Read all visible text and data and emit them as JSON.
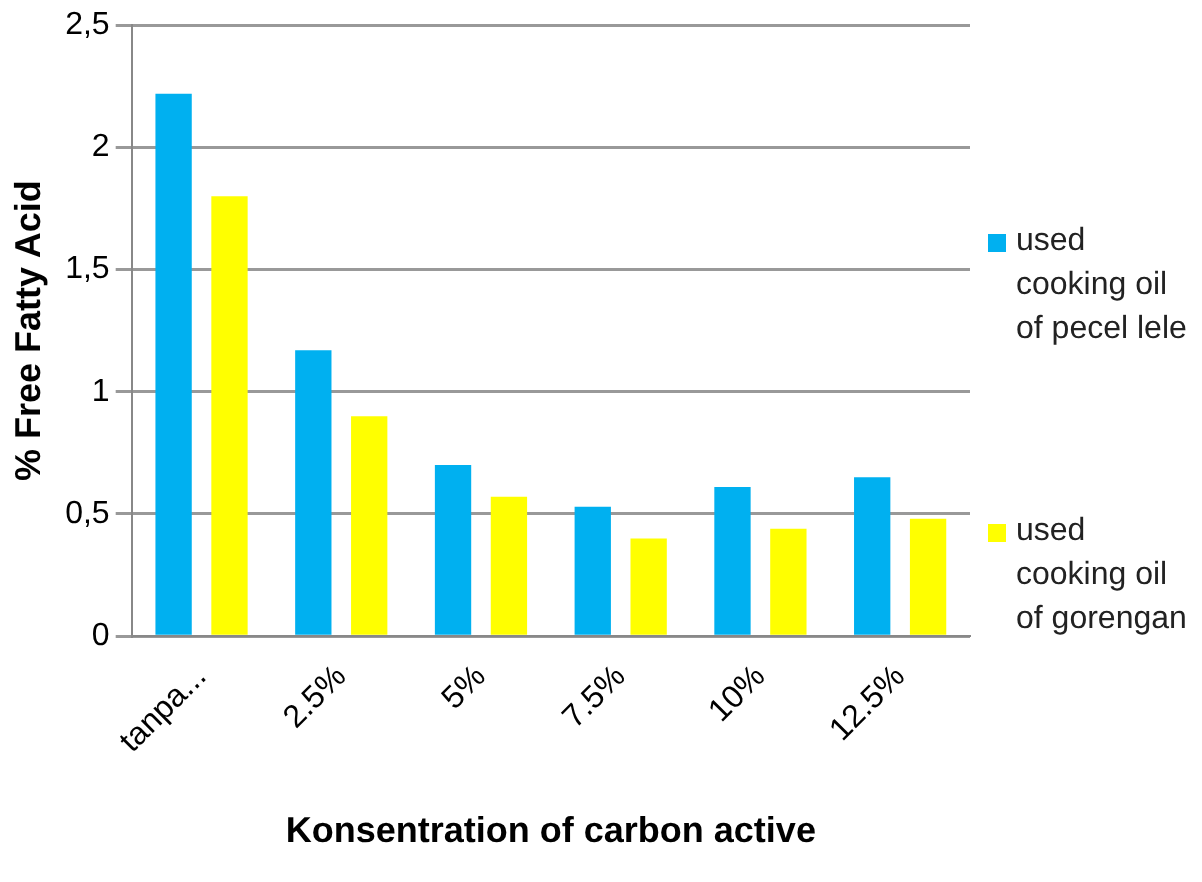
{
  "chart_data": {
    "type": "bar",
    "xlabel": "Konsentration of carbon active",
    "ylabel": "% Free Fatty Acid",
    "categories": [
      "tanpa...",
      "2.5%",
      "5%",
      "7.5%",
      "10%",
      "12.5%"
    ],
    "series": [
      {
        "name": "used cooking oil of pecel lele",
        "color": "#00b0f0",
        "values": [
          2.22,
          1.17,
          0.7,
          0.53,
          0.61,
          0.65
        ]
      },
      {
        "name": "used cooking oil of gorengan",
        "color": "#ffff00",
        "values": [
          1.8,
          0.9,
          0.57,
          0.4,
          0.44,
          0.48
        ]
      }
    ],
    "ylim": [
      0,
      2.5
    ],
    "yticks": [
      {
        "value": 0,
        "label": "0"
      },
      {
        "value": 0.5,
        "label": "0,5"
      },
      {
        "value": 1,
        "label": "1"
      },
      {
        "value": 1.5,
        "label": "1,5"
      },
      {
        "value": 2,
        "label": "2"
      },
      {
        "value": 2.5,
        "label": "2,5"
      }
    ],
    "grid": "y",
    "legend": "right"
  }
}
